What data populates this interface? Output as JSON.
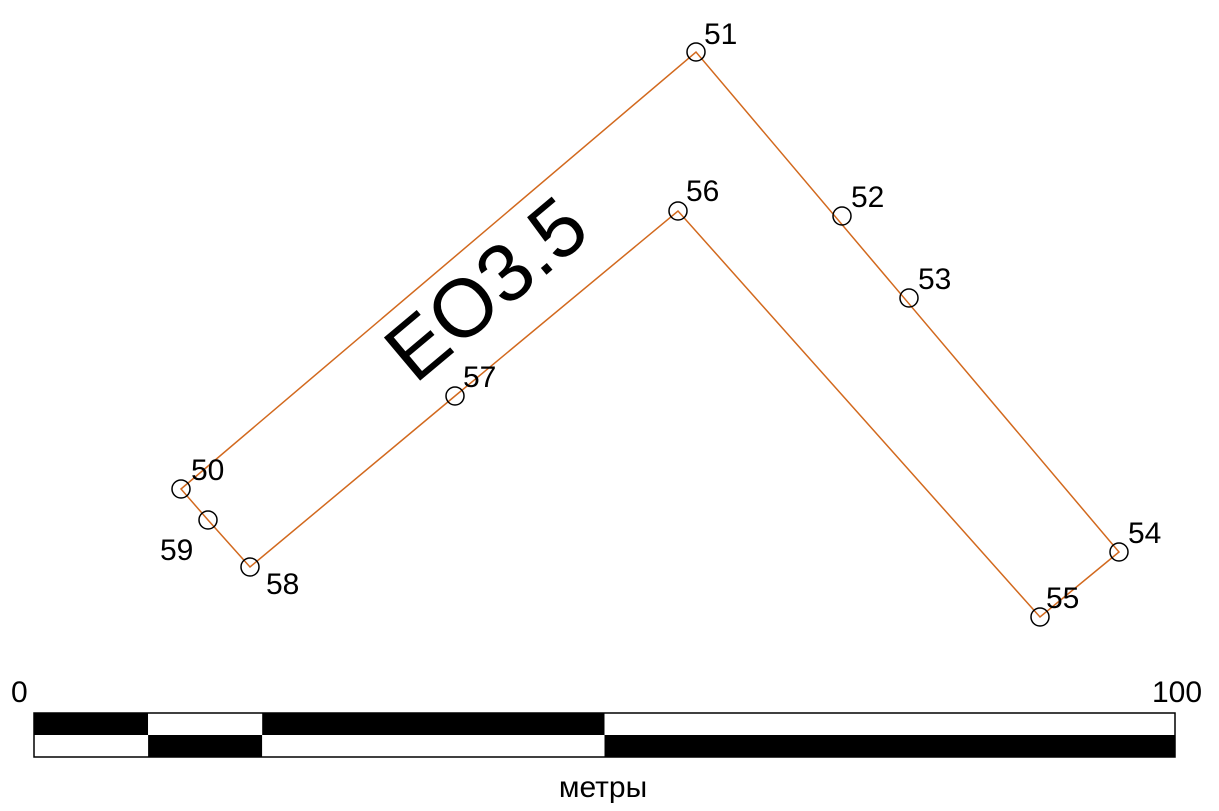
{
  "parcel": {
    "label": "ЕО3.5",
    "boundary_color": "#d2691e",
    "points": [
      {
        "id": "50",
        "label": "50"
      },
      {
        "id": "51",
        "label": "51"
      },
      {
        "id": "52",
        "label": "52"
      },
      {
        "id": "53",
        "label": "53"
      },
      {
        "id": "54",
        "label": "54"
      },
      {
        "id": "55",
        "label": "55"
      },
      {
        "id": "56",
        "label": "56"
      },
      {
        "id": "57",
        "label": "57"
      },
      {
        "id": "58",
        "label": "58"
      },
      {
        "id": "59",
        "label": "59"
      }
    ]
  },
  "scale_bar": {
    "start_label": "0",
    "end_label": "100",
    "unit_label": "метры",
    "start_value": 0,
    "end_value": 100,
    "segment_breaks": [
      0,
      10,
      20,
      50,
      100
    ]
  }
}
